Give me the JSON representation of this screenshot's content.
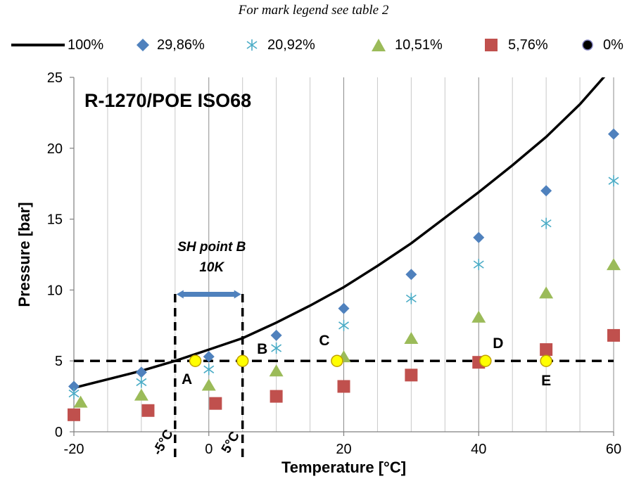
{
  "caption": "For mark legend see table 2",
  "chart_data": {
    "type": "scatter",
    "title": "R-1270/POE ISO68",
    "xlabel": "Temperature [°C]",
    "ylabel": "Pressure [bar]",
    "xlim": [
      -20,
      60
    ],
    "ylim": [
      0,
      25
    ],
    "xticks": [
      "-20",
      "0",
      "20",
      "40",
      "60"
    ],
    "yticks": [
      "0",
      "5",
      "10",
      "15",
      "20",
      "25"
    ],
    "grid": "vertical",
    "legend_position": "top",
    "series": [
      {
        "name": "100%",
        "kind": "line",
        "color": "#000000",
        "x": [
          -20,
          -15,
          -10,
          -5,
          0,
          5,
          10,
          15,
          20,
          25,
          30,
          35,
          40,
          45,
          50,
          55,
          60
        ],
        "y": [
          3.1,
          3.7,
          4.3,
          5.0,
          5.8,
          6.6,
          7.7,
          8.9,
          10.2,
          11.7,
          13.3,
          15.1,
          16.9,
          18.8,
          20.8,
          23.1,
          25.8
        ]
      },
      {
        "name": "29,86%",
        "marker": "diamond",
        "color": "#4f81bd",
        "x": [
          -20,
          -10,
          0,
          10,
          20,
          30,
          40,
          50,
          60
        ],
        "y": [
          3.2,
          4.2,
          5.3,
          6.8,
          8.7,
          11.1,
          13.7,
          17.0,
          21.0
        ]
      },
      {
        "name": "20,92%",
        "marker": "asterisk",
        "color": "#4bacc6",
        "x": [
          -20,
          -10,
          0,
          10,
          20,
          30,
          40,
          50,
          60
        ],
        "y": [
          2.7,
          3.5,
          4.4,
          5.9,
          7.5,
          9.4,
          11.8,
          14.7,
          17.7
        ]
      },
      {
        "name": "10,51%",
        "marker": "triangle",
        "color": "#9bbb59",
        "x": [
          -19,
          -10,
          0,
          10,
          20,
          30,
          40,
          50,
          60
        ],
        "y": [
          2.1,
          2.6,
          3.3,
          4.3,
          5.3,
          6.6,
          8.1,
          9.8,
          11.8
        ]
      },
      {
        "name": "5,76%",
        "marker": "square",
        "color": "#c0504d",
        "x": [
          -20,
          -9,
          1,
          10,
          20,
          30,
          40,
          50,
          60
        ],
        "y": [
          1.2,
          1.5,
          2.0,
          2.5,
          3.2,
          4.0,
          4.9,
          5.8,
          6.8
        ]
      },
      {
        "name": "0%",
        "marker": "circle",
        "color": "#000000",
        "x": [],
        "y": []
      }
    ],
    "reference_lines": {
      "horizontal_y": 5,
      "vertical_x": [
        -5,
        5
      ],
      "vertical_labels": [
        "-5°C",
        "5°C"
      ]
    },
    "superheat": {
      "label_line1": "SH point B",
      "label_line2": "10K",
      "from": -5,
      "to": 5,
      "y": 9.7,
      "color": "#4f81bd"
    },
    "points": [
      {
        "label": "A",
        "x": -2,
        "y": 5
      },
      {
        "label": "B",
        "x": 5,
        "y": 5
      },
      {
        "label": "C",
        "x": 19,
        "y": 5
      },
      {
        "label": "D",
        "x": 41,
        "y": 5
      },
      {
        "label": "E",
        "x": 50,
        "y": 5
      }
    ],
    "point_color": "#ffff00"
  }
}
